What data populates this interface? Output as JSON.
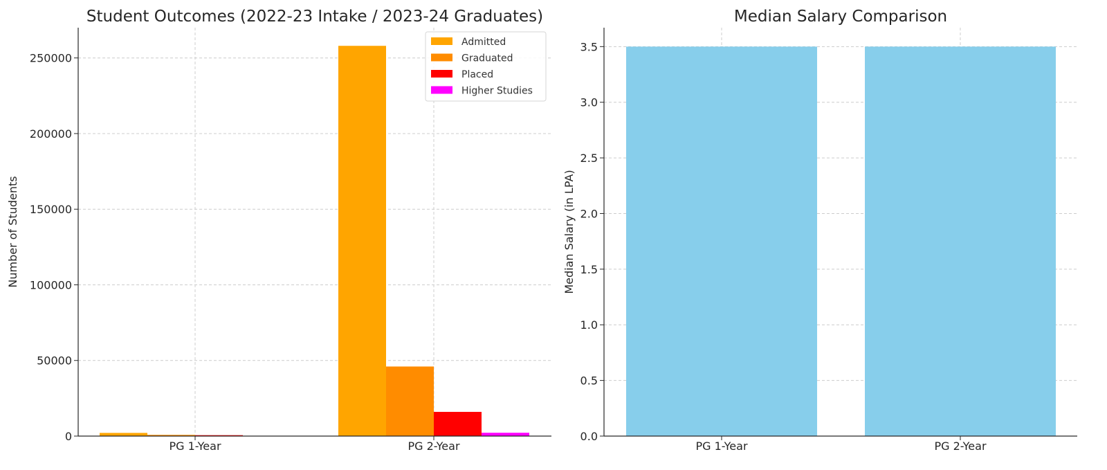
{
  "chart_data": [
    {
      "type": "bar",
      "title": "Student Outcomes (2022-23 Intake / 2023-24 Graduates)",
      "xlabel": "",
      "ylabel": "Number of Students",
      "categories": [
        "PG 1-Year",
        "PG 2-Year"
      ],
      "series": [
        {
          "name": "Admitted",
          "color": "#FFA500",
          "values": [
            2100,
            258000
          ]
        },
        {
          "name": "Graduated",
          "color": "#FF8C00",
          "values": [
            800,
            46000
          ]
        },
        {
          "name": "Placed",
          "color": "#FF0000",
          "values": [
            600,
            16000
          ]
        },
        {
          "name": "Higher Studies",
          "color": "#FF00FF",
          "values": [
            0,
            2200
          ]
        }
      ],
      "yticks": [
        0,
        50000,
        100000,
        150000,
        200000,
        250000
      ],
      "ylim": [
        0,
        270000
      ],
      "grid": true,
      "legend_position": "top-right"
    },
    {
      "type": "bar",
      "title": "Median Salary Comparison",
      "xlabel": "",
      "ylabel": "Median Salary (in LPA)",
      "categories": [
        "PG 1-Year",
        "PG 2-Year"
      ],
      "values": [
        3.5,
        3.5
      ],
      "color": "#87CEEB",
      "yticks": [
        "0.0",
        "0.5",
        "1.0",
        "1.5",
        "2.0",
        "2.5",
        "3.0",
        "3.5"
      ],
      "ylim": [
        0,
        3.67
      ],
      "grid": true
    }
  ]
}
